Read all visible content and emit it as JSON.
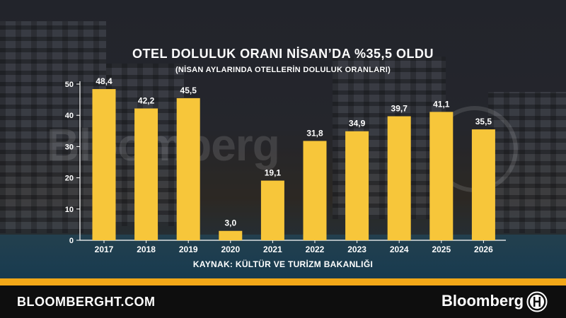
{
  "header": {
    "title": "OTEL DOLULUK ORANI NİSAN’DA %35,5 OLDU",
    "subtitle": "(NİSAN AYLARINDA OTELLERİN DOLULUK ORANLARI)"
  },
  "source": "KAYNAK: KÜLTÜR VE TURİZM BAKANLIĞI",
  "watermark": "Bloomberg",
  "footer": {
    "url": "BLOOMBERGHT.COM",
    "brand": "Bloomberg"
  },
  "colors": {
    "bar": "#f7c63a",
    "accent": "#f2a818",
    "text": "#ffffff"
  },
  "chart_data": {
    "type": "bar",
    "categories": [
      "2017",
      "2018",
      "2019",
      "2020",
      "2021",
      "2022",
      "2023",
      "2024",
      "2025",
      "2026"
    ],
    "values": [
      48.4,
      42.2,
      45.5,
      3.0,
      19.1,
      31.8,
      34.9,
      39.7,
      41.1,
      35.5
    ],
    "value_labels": [
      "48,4",
      "42,2",
      "45,5",
      "3,0",
      "19,1",
      "31,8",
      "34,9",
      "39,7",
      "41,1",
      "35,5"
    ],
    "yticks": [
      0,
      10,
      20,
      30,
      40,
      50
    ],
    "ylim": [
      0,
      50
    ],
    "grid": false,
    "title": "OTEL DOLULUK ORANI NİSAN’DA %35,5 OLDU",
    "xlabel": "",
    "ylabel": ""
  }
}
